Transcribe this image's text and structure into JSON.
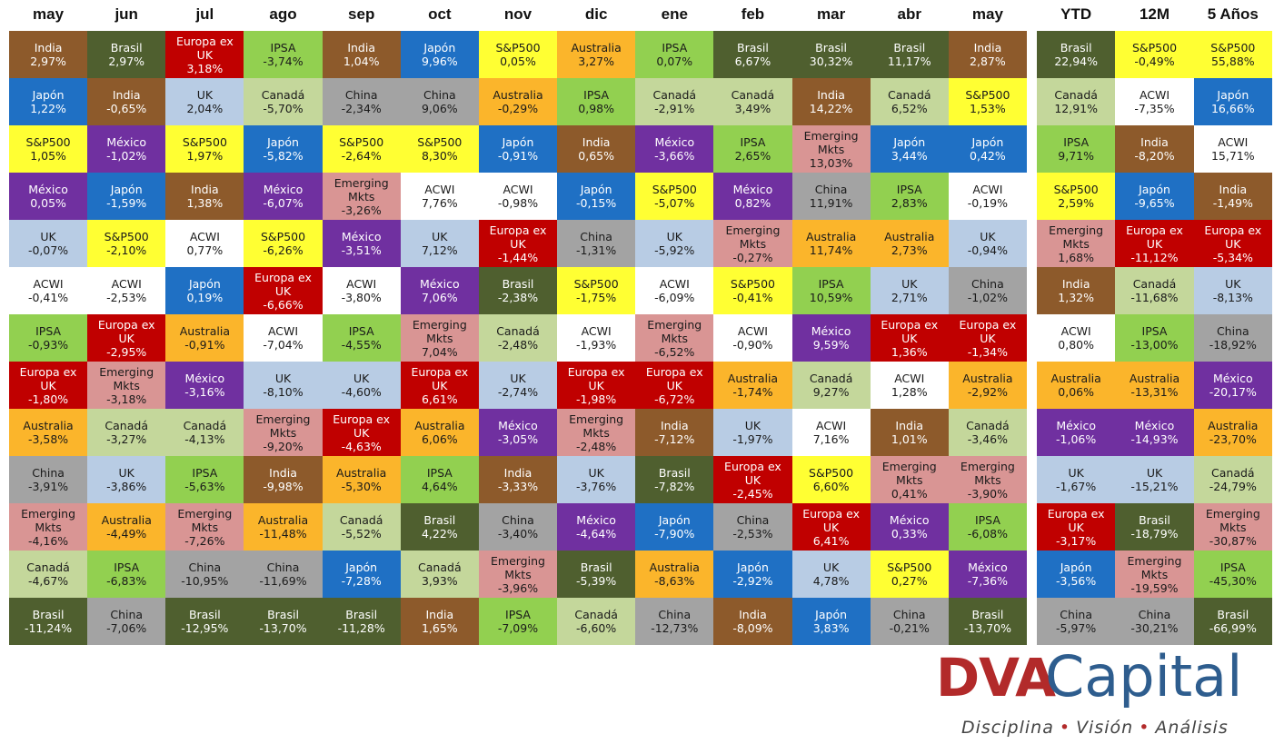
{
  "styles": {
    "India": {
      "fill": "#8d5a2b",
      "text": "#ffffff"
    },
    "Brasil": {
      "fill": "#4f5f2f",
      "text": "#ffffff"
    },
    "Europa ex UK": {
      "fill": "#c00000",
      "text": "#ffffff"
    },
    "IPSA": {
      "fill": "#92d050",
      "text": "#1a1a1a"
    },
    "Japón": {
      "fill": "#1f70c4",
      "text": "#ffffff"
    },
    "S&P500": {
      "fill": "#ffff33",
      "text": "#1a1a1a"
    },
    "Australia": {
      "fill": "#fbb52b",
      "text": "#1a1a1a"
    },
    "Canadá": {
      "fill": "#c4d79b",
      "text": "#1a1a1a"
    },
    "China": {
      "fill": "#a3a3a3",
      "text": "#1a1a1a"
    },
    "UK": {
      "fill": "#b8cce4",
      "text": "#1a1a1a"
    },
    "México": {
      "fill": "#7030a0",
      "text": "#ffffff"
    },
    "ACWI": {
      "fill": "#ffffff",
      "text": "#1a1a1a"
    },
    "Emerging Mkts": {
      "fill": "#d99594",
      "text": "#1a1a1a"
    }
  },
  "columns": [
    {
      "header": "may",
      "cells": [
        [
          "India",
          "2,97%"
        ],
        [
          "Japón",
          "1,22%"
        ],
        [
          "S&P500",
          "1,05%"
        ],
        [
          "México",
          "0,05%"
        ],
        [
          "UK",
          "-0,07%"
        ],
        [
          "ACWI",
          "-0,41%"
        ],
        [
          "IPSA",
          "-0,93%"
        ],
        [
          "Europa ex UK",
          "-1,80%"
        ],
        [
          "Australia",
          "-3,58%"
        ],
        [
          "China",
          "-3,91%"
        ],
        [
          "Emerging Mkts",
          "-4,16%"
        ],
        [
          "Canadá",
          "-4,67%"
        ],
        [
          "Brasil",
          "-11,24%"
        ]
      ]
    },
    {
      "header": "jun",
      "cells": [
        [
          "Brasil",
          "2,97%"
        ],
        [
          "India",
          "-0,65%"
        ],
        [
          "México",
          "-1,02%"
        ],
        [
          "Japón",
          "-1,59%"
        ],
        [
          "S&P500",
          "-2,10%"
        ],
        [
          "ACWI",
          "-2,53%"
        ],
        [
          "Europa ex UK",
          "-2,95%"
        ],
        [
          "Emerging Mkts",
          "-3,18%"
        ],
        [
          "Canadá",
          "-3,27%"
        ],
        [
          "UK",
          "-3,86%"
        ],
        [
          "Australia",
          "-4,49%"
        ],
        [
          "IPSA",
          "-6,83%"
        ],
        [
          "China",
          "-7,06%"
        ]
      ]
    },
    {
      "header": "jul",
      "cells": [
        [
          "Europa ex UK",
          "3,18%"
        ],
        [
          "UK",
          "2,04%"
        ],
        [
          "S&P500",
          "1,97%"
        ],
        [
          "India",
          "1,38%"
        ],
        [
          "ACWI",
          "0,77%"
        ],
        [
          "Japón",
          "0,19%"
        ],
        [
          "Australia",
          "-0,91%"
        ],
        [
          "México",
          "-3,16%"
        ],
        [
          "Canadá",
          "-4,13%"
        ],
        [
          "IPSA",
          "-5,63%"
        ],
        [
          "Emerging Mkts",
          "-7,26%"
        ],
        [
          "China",
          "-10,95%"
        ],
        [
          "Brasil",
          "-12,95%"
        ]
      ]
    },
    {
      "header": "ago",
      "cells": [
        [
          "IPSA",
          "-3,74%"
        ],
        [
          "Canadá",
          "-5,70%"
        ],
        [
          "Japón",
          "-5,82%"
        ],
        [
          "México",
          "-6,07%"
        ],
        [
          "S&P500",
          "-6,26%"
        ],
        [
          "Europa ex UK",
          "-6,66%"
        ],
        [
          "ACWI",
          "-7,04%"
        ],
        [
          "UK",
          "-8,10%"
        ],
        [
          "Emerging Mkts",
          "-9,20%"
        ],
        [
          "India",
          "-9,98%"
        ],
        [
          "Australia",
          "-11,48%"
        ],
        [
          "China",
          "-11,69%"
        ],
        [
          "Brasil",
          "-13,70%"
        ]
      ]
    },
    {
      "header": "sep",
      "cells": [
        [
          "India",
          "1,04%"
        ],
        [
          "China",
          "-2,34%"
        ],
        [
          "S&P500",
          "-2,64%"
        ],
        [
          "Emerging Mkts",
          "-3,26%"
        ],
        [
          "México",
          "-3,51%"
        ],
        [
          "ACWI",
          "-3,80%"
        ],
        [
          "IPSA",
          "-4,55%"
        ],
        [
          "UK",
          "-4,60%"
        ],
        [
          "Europa ex UK",
          "-4,63%"
        ],
        [
          "Australia",
          "-5,30%"
        ],
        [
          "Canadá",
          "-5,52%"
        ],
        [
          "Japón",
          "-7,28%"
        ],
        [
          "Brasil",
          "-11,28%"
        ]
      ]
    },
    {
      "header": "oct",
      "cells": [
        [
          "Japón",
          "9,96%"
        ],
        [
          "China",
          "9,06%"
        ],
        [
          "S&P500",
          "8,30%"
        ],
        [
          "ACWI",
          "7,76%"
        ],
        [
          "UK",
          "7,12%"
        ],
        [
          "México",
          "7,06%"
        ],
        [
          "Emerging Mkts",
          "7,04%"
        ],
        [
          "Europa ex UK",
          "6,61%"
        ],
        [
          "Australia",
          "6,06%"
        ],
        [
          "IPSA",
          "4,64%"
        ],
        [
          "Brasil",
          "4,22%"
        ],
        [
          "Canadá",
          "3,93%"
        ],
        [
          "India",
          "1,65%"
        ]
      ]
    },
    {
      "header": "nov",
      "cells": [
        [
          "S&P500",
          "0,05%"
        ],
        [
          "Australia",
          "-0,29%"
        ],
        [
          "Japón",
          "-0,91%"
        ],
        [
          "ACWI",
          "-0,98%"
        ],
        [
          "Europa ex UK",
          "-1,44%"
        ],
        [
          "Brasil",
          "-2,38%"
        ],
        [
          "Canadá",
          "-2,48%"
        ],
        [
          "UK",
          "-2,74%"
        ],
        [
          "México",
          "-3,05%"
        ],
        [
          "India",
          "-3,33%"
        ],
        [
          "China",
          "-3,40%"
        ],
        [
          "Emerging Mkts",
          "-3,96%"
        ],
        [
          "IPSA",
          "-7,09%"
        ]
      ]
    },
    {
      "header": "dic",
      "cells": [
        [
          "Australia",
          "3,27%"
        ],
        [
          "IPSA",
          "0,98%"
        ],
        [
          "India",
          "0,65%"
        ],
        [
          "Japón",
          "-0,15%"
        ],
        [
          "China",
          "-1,31%"
        ],
        [
          "S&P500",
          "-1,75%"
        ],
        [
          "ACWI",
          "-1,93%"
        ],
        [
          "Europa ex UK",
          "-1,98%"
        ],
        [
          "Emerging Mkts",
          "-2,48%"
        ],
        [
          "UK",
          "-3,76%"
        ],
        [
          "México",
          "-4,64%"
        ],
        [
          "Brasil",
          "-5,39%"
        ],
        [
          "Canadá",
          "-6,60%"
        ]
      ]
    },
    {
      "header": "ene",
      "cells": [
        [
          "IPSA",
          "0,07%"
        ],
        [
          "Canadá",
          "-2,91%"
        ],
        [
          "México",
          "-3,66%"
        ],
        [
          "S&P500",
          "-5,07%"
        ],
        [
          "UK",
          "-5,92%"
        ],
        [
          "ACWI",
          "-6,09%"
        ],
        [
          "Emerging Mkts",
          "-6,52%"
        ],
        [
          "Europa ex UK",
          "-6,72%"
        ],
        [
          "India",
          "-7,12%"
        ],
        [
          "Brasil",
          "-7,82%"
        ],
        [
          "Japón",
          "-7,90%"
        ],
        [
          "Australia",
          "-8,63%"
        ],
        [
          "China",
          "-12,73%"
        ]
      ]
    },
    {
      "header": "feb",
      "cells": [
        [
          "Brasil",
          "6,67%"
        ],
        [
          "Canadá",
          "3,49%"
        ],
        [
          "IPSA",
          "2,65%"
        ],
        [
          "México",
          "0,82%"
        ],
        [
          "Emerging Mkts",
          "-0,27%"
        ],
        [
          "S&P500",
          "-0,41%"
        ],
        [
          "ACWI",
          "-0,90%"
        ],
        [
          "Australia",
          "-1,74%"
        ],
        [
          "UK",
          "-1,97%"
        ],
        [
          "Europa ex UK",
          "-2,45%"
        ],
        [
          "China",
          "-2,53%"
        ],
        [
          "Japón",
          "-2,92%"
        ],
        [
          "India",
          "-8,09%"
        ]
      ]
    },
    {
      "header": "mar",
      "cells": [
        [
          "Brasil",
          "30,32%"
        ],
        [
          "India",
          "14,22%"
        ],
        [
          "Emerging Mkts",
          "13,03%"
        ],
        [
          "China",
          "11,91%"
        ],
        [
          "Australia",
          "11,74%"
        ],
        [
          "IPSA",
          "10,59%"
        ],
        [
          "México",
          "9,59%"
        ],
        [
          "Canadá",
          "9,27%"
        ],
        [
          "ACWI",
          "7,16%"
        ],
        [
          "S&P500",
          "6,60%"
        ],
        [
          "Europa ex UK",
          "6,41%"
        ],
        [
          "UK",
          "4,78%"
        ],
        [
          "Japón",
          "3,83%"
        ]
      ]
    },
    {
      "header": "abr",
      "cells": [
        [
          "Brasil",
          "11,17%"
        ],
        [
          "Canadá",
          "6,52%"
        ],
        [
          "Japón",
          "3,44%"
        ],
        [
          "IPSA",
          "2,83%"
        ],
        [
          "Australia",
          "2,73%"
        ],
        [
          "UK",
          "2,71%"
        ],
        [
          "Europa ex UK",
          "1,36%"
        ],
        [
          "ACWI",
          "1,28%"
        ],
        [
          "India",
          "1,01%"
        ],
        [
          "Emerging Mkts",
          "0,41%"
        ],
        [
          "México",
          "0,33%"
        ],
        [
          "S&P500",
          "0,27%"
        ],
        [
          "China",
          "-0,21%"
        ]
      ]
    },
    {
      "header": "may",
      "cells": [
        [
          "India",
          "2,87%"
        ],
        [
          "S&P500",
          "1,53%"
        ],
        [
          "Japón",
          "0,42%"
        ],
        [
          "ACWI",
          "-0,19%"
        ],
        [
          "UK",
          "-0,94%"
        ],
        [
          "China",
          "-1,02%"
        ],
        [
          "Europa ex UK",
          "-1,34%"
        ],
        [
          "Australia",
          "-2,92%"
        ],
        [
          "Canadá",
          "-3,46%"
        ],
        [
          "Emerging Mkts",
          "-3,90%"
        ],
        [
          "IPSA",
          "-6,08%"
        ],
        [
          "México",
          "-7,36%"
        ],
        [
          "Brasil",
          "-13,70%"
        ]
      ]
    }
  ],
  "summary_columns": [
    {
      "header": "YTD",
      "cells": [
        [
          "Brasil",
          "22,94%"
        ],
        [
          "Canadá",
          "12,91%"
        ],
        [
          "IPSA",
          "9,71%"
        ],
        [
          "S&P500",
          "2,59%"
        ],
        [
          "Emerging Mkts",
          "1,68%"
        ],
        [
          "India",
          "1,32%"
        ],
        [
          "ACWI",
          "0,80%"
        ],
        [
          "Australia",
          "0,06%"
        ],
        [
          "México",
          "-1,06%"
        ],
        [
          "UK",
          "-1,67%"
        ],
        [
          "Europa ex UK",
          "-3,17%"
        ],
        [
          "Japón",
          "-3,56%"
        ],
        [
          "China",
          "-5,97%"
        ]
      ]
    },
    {
      "header": "12M",
      "cells": [
        [
          "S&P500",
          "-0,49%"
        ],
        [
          "ACWI",
          "-7,35%"
        ],
        [
          "India",
          "-8,20%"
        ],
        [
          "Japón",
          "-9,65%"
        ],
        [
          "Europa ex UK",
          "-11,12%"
        ],
        [
          "Canadá",
          "-11,68%"
        ],
        [
          "IPSA",
          "-13,00%"
        ],
        [
          "Australia",
          "-13,31%"
        ],
        [
          "México",
          "-14,93%"
        ],
        [
          "UK",
          "-15,21%"
        ],
        [
          "Brasil",
          "-18,79%"
        ],
        [
          "Emerging Mkts",
          "-19,59%"
        ],
        [
          "China",
          "-30,21%"
        ]
      ]
    },
    {
      "header": "5 Años",
      "cells": [
        [
          "S&P500",
          "55,88%"
        ],
        [
          "Japón",
          "16,66%"
        ],
        [
          "ACWI",
          "15,71%"
        ],
        [
          "India",
          "-1,49%"
        ],
        [
          "Europa ex UK",
          "-5,34%"
        ],
        [
          "UK",
          "-8,13%"
        ],
        [
          "China",
          "-18,92%"
        ],
        [
          "México",
          "-20,17%"
        ],
        [
          "Australia",
          "-23,70%"
        ],
        [
          "Canadá",
          "-24,79%"
        ],
        [
          "Emerging Mkts",
          "-30,87%"
        ],
        [
          "IPSA",
          "-45,30%"
        ],
        [
          "Brasil",
          "-66,99%"
        ]
      ]
    }
  ],
  "logo": {
    "brand": "DVA",
    "name": "Capital",
    "tagline": [
      "Disciplina",
      "Visión",
      "Análisis"
    ]
  }
}
